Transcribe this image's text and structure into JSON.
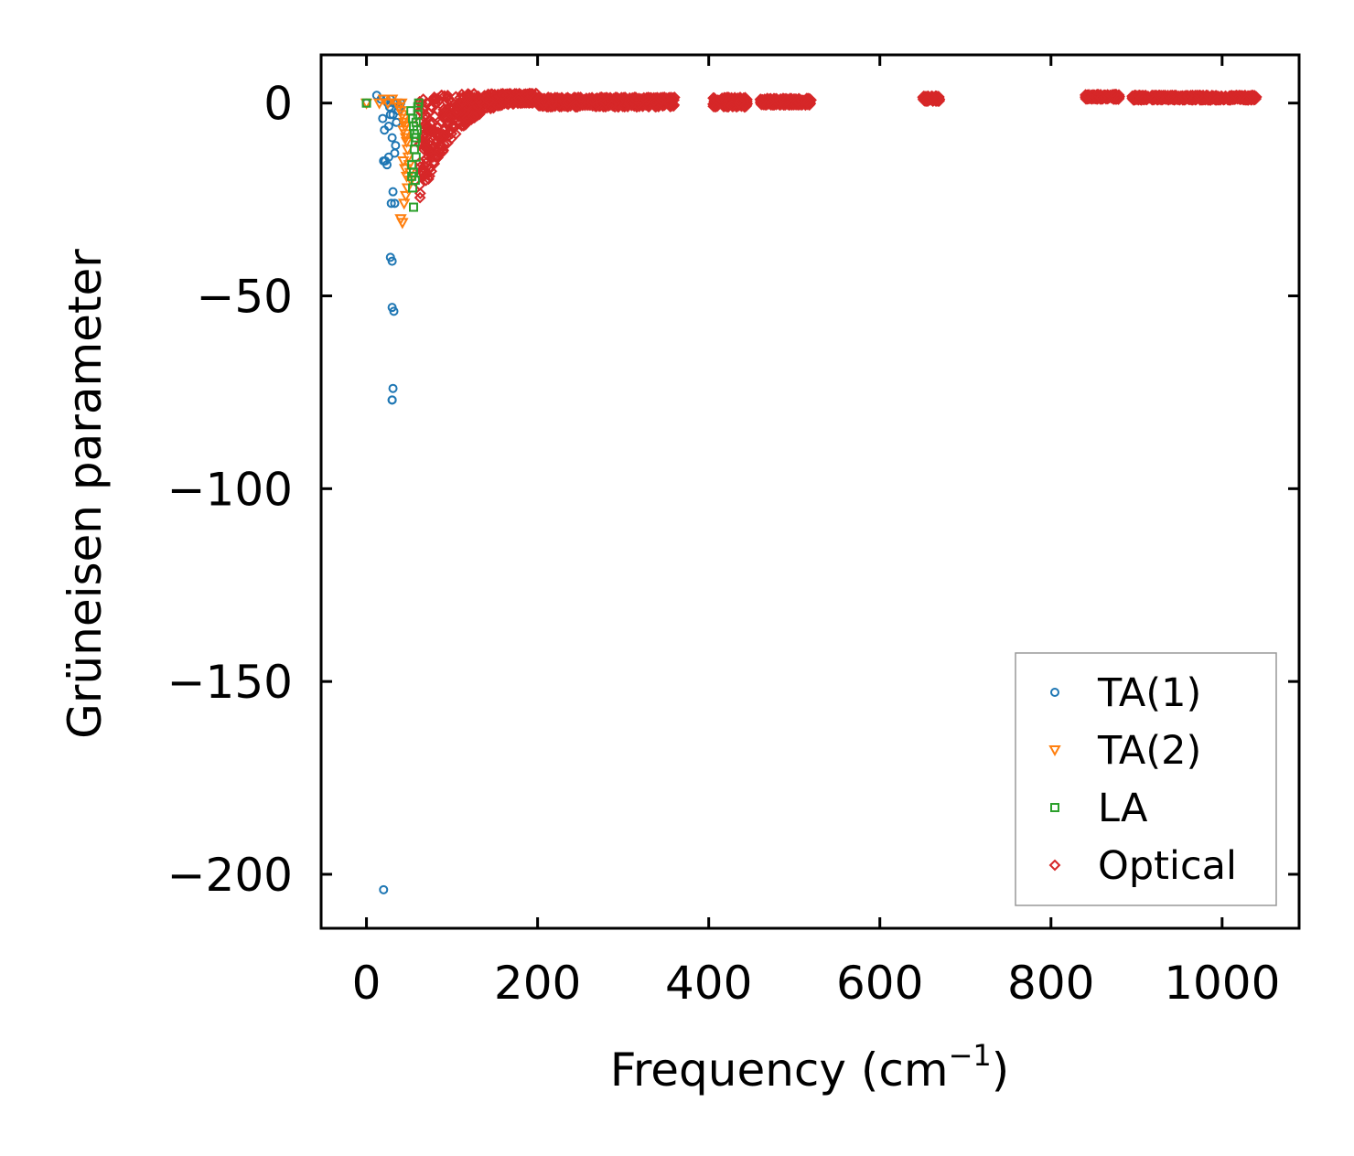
{
  "chart_data": {
    "type": "scatter",
    "title": "",
    "xlabel": "Frequency (cm",
    "xlabel_superscript": "−1",
    "xlabel_suffix": ")",
    "ylabel": "Grüneisen parameter",
    "xlim": [
      -53,
      1090
    ],
    "ylim": [
      -214,
      12.5
    ],
    "x_ticks": [
      0,
      200,
      400,
      600,
      800,
      1000
    ],
    "x_tick_labels": [
      "0",
      "200",
      "400",
      "600",
      "800",
      "1000"
    ],
    "y_ticks": [
      0,
      -50,
      -100,
      -150,
      -200
    ],
    "y_tick_labels": [
      "0",
      "−50",
      "−100",
      "−150",
      "−200"
    ],
    "grid": false,
    "legend_position": "bottom-right",
    "series": [
      {
        "name": "TA(1)",
        "marker": "circle",
        "color": "#1f77b4",
        "x": [
          0,
          12,
          17,
          19,
          21,
          23,
          25,
          27,
          28,
          30,
          31,
          32,
          33,
          34,
          35,
          36,
          38,
          40,
          20,
          22,
          24,
          26,
          29,
          31,
          33,
          28,
          30,
          30,
          32,
          31,
          30,
          30,
          20,
          35,
          37,
          39,
          26,
          28
        ],
        "y": [
          0,
          2,
          1,
          -4,
          -7,
          1,
          0,
          -1,
          1,
          -9,
          -3,
          0,
          -13,
          -11,
          0,
          0,
          -1,
          0,
          -15,
          -15,
          -16,
          -14,
          -26,
          -23,
          -26,
          -40,
          -41,
          -53,
          -54,
          -74,
          -77,
          -77,
          -204,
          -5,
          -2,
          -1,
          -6,
          -3
        ]
      },
      {
        "name": "TA(2)",
        "marker": "triangle-down",
        "color": "#ff7f0e",
        "x": [
          0,
          15,
          20,
          25,
          30,
          35,
          38,
          40,
          42,
          44,
          45,
          46,
          47,
          48,
          49,
          50,
          51,
          52,
          40,
          42,
          44,
          46,
          48,
          43,
          45,
          47,
          41,
          44,
          43,
          46
        ],
        "y": [
          0,
          0,
          1,
          0,
          1,
          0,
          -1,
          -2,
          -3,
          -5,
          -6,
          -8,
          -10,
          -12,
          -14,
          -16,
          -18,
          -20,
          -30,
          -31,
          -26,
          -24,
          -22,
          -15,
          -17,
          -19,
          0,
          -4,
          -7,
          -9
        ]
      },
      {
        "name": "LA",
        "marker": "square",
        "color": "#2ca02c",
        "x": [
          0,
          52,
          54,
          55,
          56,
          57,
          58,
          59,
          60,
          61,
          53,
          55,
          57,
          54,
          56,
          58,
          60,
          58,
          55,
          53
        ],
        "y": [
          0,
          -2,
          -4,
          -6,
          -8,
          -10,
          -9,
          -7,
          -3,
          0,
          -16,
          -18,
          -20,
          -22,
          -12,
          -14,
          -1,
          -5,
          -27,
          -19
        ]
      },
      {
        "name": "Optical",
        "marker": "diamond",
        "color": "#d62728",
        "x": [],
        "y": []
      }
    ],
    "optical_bands": [
      {
        "x_range": [
          62,
          200
        ],
        "y_range": [
          -25,
          2.5
        ]
      },
      {
        "x_range": [
          200,
          360
        ],
        "y_range": [
          -1,
          1.5
        ]
      },
      {
        "x_range": [
          405,
          445
        ],
        "y_range": [
          -1,
          1.5
        ]
      },
      {
        "x_range": [
          460,
          520
        ],
        "y_range": [
          -0.5,
          1.2
        ]
      },
      {
        "x_range": [
          650,
          670
        ],
        "y_range": [
          0.5,
          1.8
        ]
      },
      {
        "x_range": [
          840,
          880
        ],
        "y_range": [
          1,
          2.2
        ]
      },
      {
        "x_range": [
          895,
          1040
        ],
        "y_range": [
          0.8,
          2
        ]
      }
    ]
  }
}
